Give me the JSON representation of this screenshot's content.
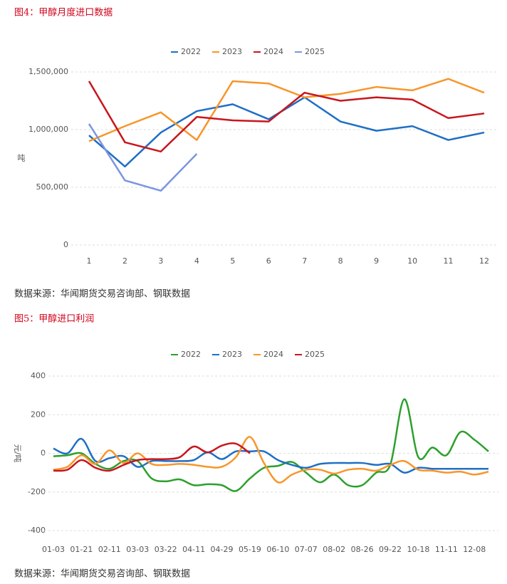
{
  "chart_data": [
    {
      "type": "line",
      "title": "图4：甲醇月度进口数据",
      "y_label": "吨",
      "source": "数据来源：华闻期货交易咨询部、钢联数据",
      "categories": [
        "1",
        "2",
        "3",
        "4",
        "5",
        "6",
        "7",
        "8",
        "9",
        "10",
        "11",
        "12"
      ],
      "ylim": [
        0,
        1500000
      ],
      "yticks": [
        0,
        {
          "value": 500000,
          "label": "500,000"
        },
        {
          "value": 1000000,
          "label": "1,000,000"
        },
        {
          "value": 1500000,
          "label": "1,500,000"
        }
      ],
      "grid": true,
      "legend": "top",
      "series": [
        {
          "name": "2022",
          "color": "#1f6fc5",
          "values": [
            950000,
            680000,
            975000,
            1160000,
            1220000,
            1090000,
            1280000,
            1070000,
            990000,
            1030000,
            910000,
            975000
          ]
        },
        {
          "name": "2023",
          "color": "#f7962b",
          "values": [
            900000,
            1030000,
            1150000,
            910000,
            1420000,
            1400000,
            1280000,
            1310000,
            1370000,
            1340000,
            1440000,
            1320000
          ]
        },
        {
          "name": "2024",
          "color": "#c8161d",
          "values": [
            1420000,
            890000,
            810000,
            1110000,
            1080000,
            1070000,
            1320000,
            1250000,
            1280000,
            1260000,
            1100000,
            1140000
          ]
        },
        {
          "name": "2025",
          "color": "#7b95e0",
          "values": [
            1050000,
            560000,
            470000,
            790000,
            null,
            null,
            null,
            null,
            null,
            null,
            null,
            null
          ]
        }
      ]
    },
    {
      "type": "line",
      "title": "图5：甲醇进口利润",
      "y_label": "元/吨",
      "source": "数据来源：华闻期货交易咨询部、钢联数据",
      "categories": [
        "01-03",
        null,
        "01-21",
        null,
        "02-11",
        null,
        "03-03",
        null,
        "03-22",
        null,
        "04-11",
        null,
        "04-29",
        null,
        "05-19",
        null,
        "06-10",
        null,
        "07-07",
        null,
        "08-02",
        null,
        "08-26",
        null,
        "09-22",
        null,
        "10-18",
        null,
        "11-11",
        null,
        "12-08",
        null
      ],
      "ylim": [
        -400,
        400
      ],
      "yticks": [
        -400,
        -200,
        0,
        200,
        400
      ],
      "grid": true,
      "legend": "top",
      "smooth": true,
      "series": [
        {
          "name": "2022",
          "color": "#2ca02c",
          "values": [
            -15,
            -10,
            0,
            -55,
            -80,
            -40,
            -40,
            -130,
            -145,
            -135,
            -165,
            -160,
            -165,
            -195,
            -130,
            -75,
            -65,
            -45,
            -100,
            -150,
            -110,
            -165,
            -165,
            -100,
            -60,
            280,
            -20,
            30,
            -10,
            110,
            70,
            10
          ]
        },
        {
          "name": "2023",
          "color": "#1f6fc5",
          "values": [
            25,
            0,
            75,
            -40,
            -25,
            -15,
            -70,
            -40,
            -40,
            -40,
            -35,
            5,
            -30,
            10,
            10,
            10,
            -35,
            -60,
            -75,
            -55,
            -50,
            -50,
            -50,
            -60,
            -55,
            -100,
            -75,
            -80,
            -80,
            -80,
            -80,
            -80
          ]
        },
        {
          "name": "2024",
          "color": "#f7962b",
          "values": [
            -85,
            -70,
            -10,
            -55,
            15,
            -50,
            0,
            -55,
            -60,
            -55,
            -60,
            -70,
            -70,
            -20,
            85,
            -50,
            -150,
            -110,
            -85,
            -85,
            -105,
            -85,
            -80,
            -90,
            -60,
            -40,
            -85,
            -90,
            -100,
            -95,
            -110,
            -95
          ]
        },
        {
          "name": "2025",
          "color": "#c8161d",
          "values": [
            -90,
            -85,
            -35,
            -75,
            -90,
            -60,
            -35,
            -30,
            -30,
            -20,
            35,
            5,
            40,
            50,
            0,
            null,
            null,
            null,
            null,
            null,
            null,
            null,
            null,
            null,
            null,
            null,
            null,
            null,
            null,
            null,
            null,
            null
          ]
        }
      ]
    }
  ]
}
